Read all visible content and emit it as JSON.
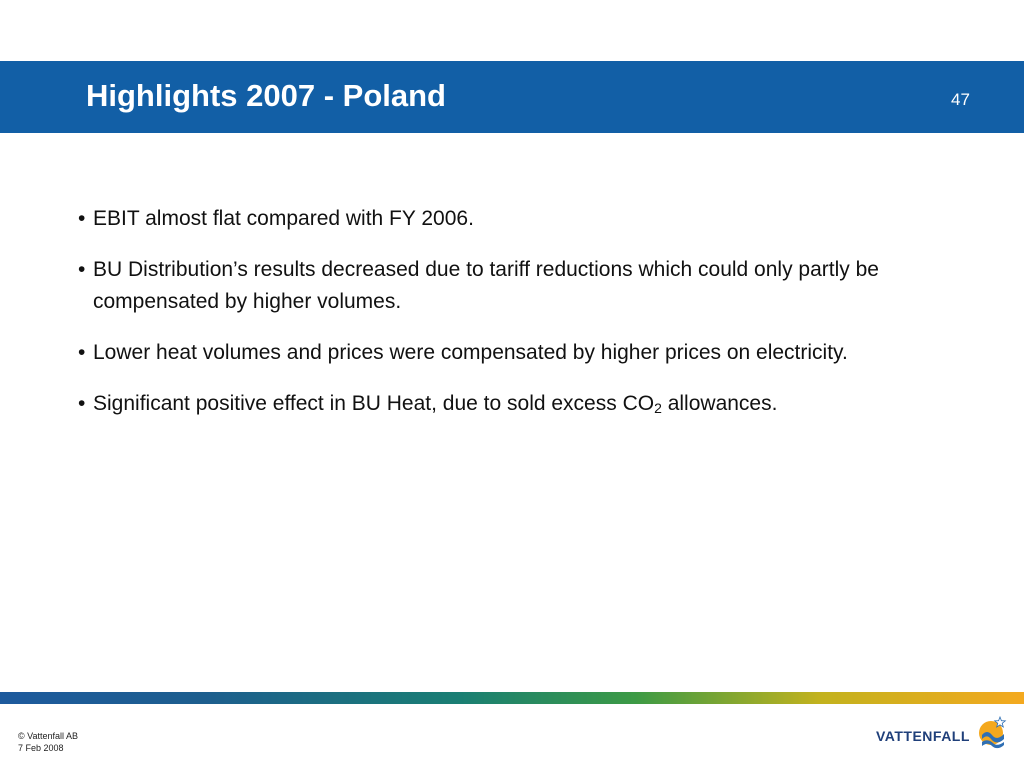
{
  "slide": {
    "title": "Highlights 2007 - Poland",
    "page_number": "47"
  },
  "bullets": [
    {
      "marker": "•",
      "text": "EBIT almost flat compared with FY 2006."
    },
    {
      "marker": "•",
      "text": "BU Distribution’s results decreased due to tariff reductions which could only partly be compensated by higher volumes."
    },
    {
      "marker": "•",
      "text": "Lower heat volumes and prices were compensated by higher prices on electricity."
    },
    {
      "marker": "•",
      "text_before": "Significant positive effect in BU Heat, due to sold excess CO",
      "subscript": "2",
      "text_after": " allowances."
    }
  ],
  "footer": {
    "copyright": "© Vattenfall AB",
    "date": "7 Feb 2008"
  },
  "logo": {
    "text": "VATTENFALL",
    "icon": "vattenfall-sun-wave-icon"
  },
  "colors": {
    "title_bar": "#125fa6",
    "stripe_start": "#1d5a9d",
    "stripe_middle": "#1a7f73",
    "stripe_end": "#f4a91f",
    "logo_text": "#1f3f7a",
    "logo_orange": "#f4a81d",
    "logo_blue": "#2f6fb4"
  }
}
